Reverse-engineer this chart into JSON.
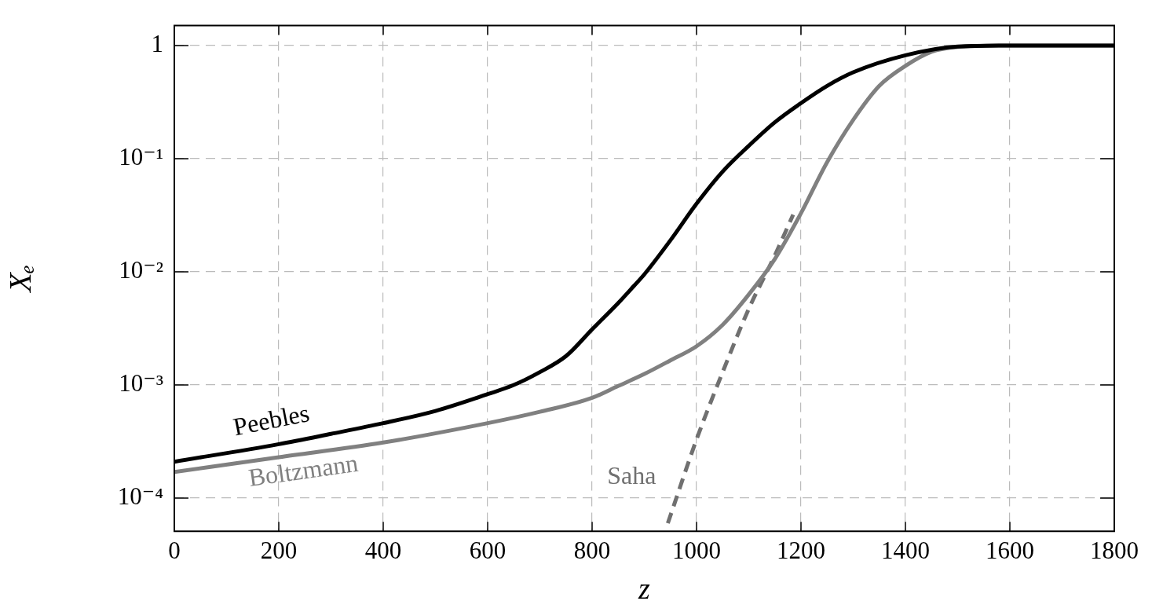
{
  "chart_data": {
    "type": "line",
    "xlabel": "z",
    "ylabel": "Xₑ",
    "log": "y",
    "grid": true,
    "legend": false,
    "marker": "none",
    "xlim": [
      0,
      1800
    ],
    "xticks": [
      0,
      200,
      400,
      600,
      800,
      1000,
      1200,
      1400,
      1600,
      1800
    ],
    "ylim": [
      5.1e-05,
      1.5
    ],
    "yticks": [
      {
        "value": 0.0001,
        "label": "10⁻⁴"
      },
      {
        "value": 0.001,
        "label": "10⁻³"
      },
      {
        "value": 0.01,
        "label": "10⁻²"
      },
      {
        "value": 0.1,
        "label": "10⁻¹"
      },
      1
    ],
    "series": [
      {
        "name": "Peebles",
        "color": "#000000",
        "line_style": "solid",
        "x": [
          0,
          200,
          300,
          400,
          500,
          600,
          650,
          700,
          750,
          800,
          850,
          880,
          900,
          950,
          1000,
          1050,
          1100,
          1150,
          1200,
          1250,
          1300,
          1400,
          1500,
          1600,
          1800
        ],
        "values": [
          0.00021,
          0.0003,
          0.00037,
          0.00046,
          0.00059,
          0.00083,
          0.001,
          0.0013,
          0.0018,
          0.0031,
          0.0053,
          0.0075,
          0.0095,
          0.019,
          0.04,
          0.077,
          0.13,
          0.21,
          0.31,
          0.44,
          0.58,
          0.82,
          0.98,
          1,
          1
        ]
      },
      {
        "name": "Boltzmann",
        "color": "#808080",
        "line_style": "solid",
        "x": [
          0,
          200,
          400,
          600,
          700,
          800,
          850,
          900,
          950,
          1000,
          1050,
          1100,
          1150,
          1200,
          1250,
          1300,
          1350,
          1400,
          1450,
          1500,
          1600,
          1800
        ],
        "values": [
          0.00017,
          0.00023,
          0.00031,
          0.00046,
          0.00058,
          0.00077,
          0.00098,
          0.00125,
          0.00165,
          0.0022,
          0.0034,
          0.0063,
          0.013,
          0.033,
          0.093,
          0.22,
          0.44,
          0.66,
          0.88,
          0.97,
          1,
          1
        ]
      },
      {
        "name": "Saha",
        "color": "#707070",
        "line_style": "dashed",
        "x": [
          945,
          1000,
          1050,
          1100,
          1150,
          1185
        ],
        "values": [
          6e-05,
          0.00033,
          0.0013,
          0.0047,
          0.014,
          0.032
        ]
      }
    ]
  }
}
